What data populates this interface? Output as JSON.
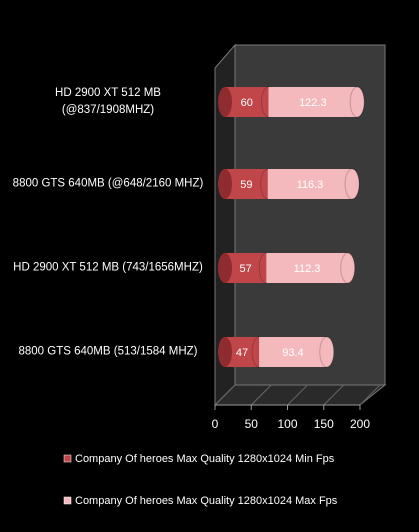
{
  "chart_data": {
    "type": "bar",
    "orientation": "horizontal",
    "stacked": true,
    "categories": [
      "HD 2900 XT 512 MB (@837/1908MHZ)",
      "8800 GTS 640MB (@648/2160 MHZ)",
      "HD 2900 XT 512 MB (743/1656MHZ)",
      "8800 GTS 640MB (513/1584 MHZ)"
    ],
    "series": [
      {
        "name": "Company Of heroes Max  Quality  1280x1024 Min Fps",
        "color": "#c0464a",
        "values": [
          60,
          59,
          57,
          47
        ]
      },
      {
        "name": "Company Of heroes Max  Quality  1280x1024 Max Fps",
        "color": "#f4b9bd",
        "values": [
          122.3,
          116.3,
          112.3,
          93.4
        ]
      }
    ],
    "xlim": [
      0,
      200
    ],
    "xticks": [
      0,
      50,
      100,
      150,
      200
    ],
    "grid": false,
    "legend": "bottom"
  }
}
